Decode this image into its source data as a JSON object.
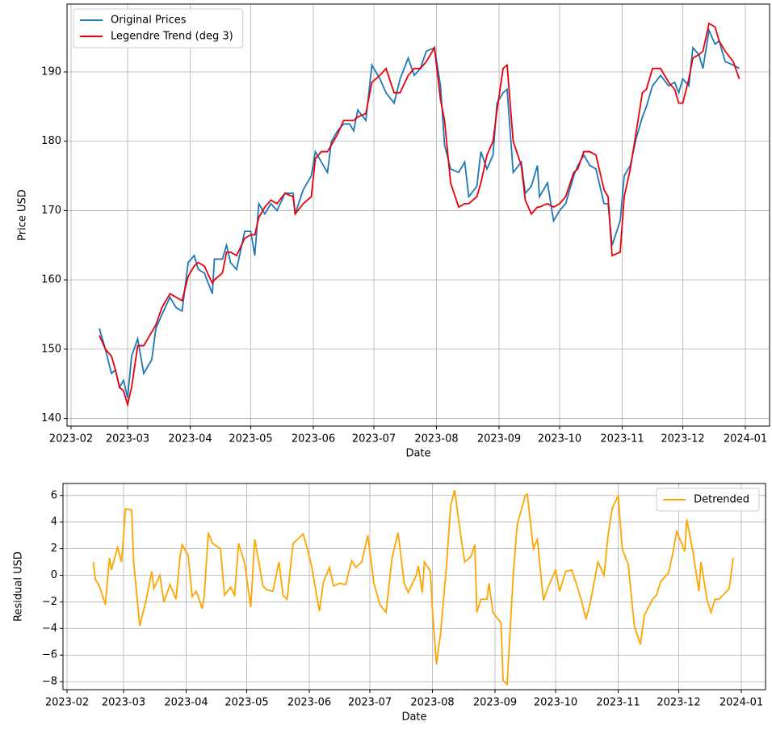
{
  "chart_data": [
    {
      "type": "line",
      "xlabel": "Date",
      "ylabel": "Price USD",
      "grid": true,
      "legend": "upper left",
      "xlim": [
        19387,
        19735
      ],
      "ylim": [
        138.9,
        199.8
      ],
      "xticks": [
        {
          "value": 19389,
          "label": "2023-02"
        },
        {
          "value": 19417,
          "label": "2023-03"
        },
        {
          "value": 19448,
          "label": "2023-04"
        },
        {
          "value": 19478,
          "label": "2023-05"
        },
        {
          "value": 19509,
          "label": "2023-06"
        },
        {
          "value": 19539,
          "label": "2023-07"
        },
        {
          "value": 19570,
          "label": "2023-08"
        },
        {
          "value": 19601,
          "label": "2023-09"
        },
        {
          "value": 19631,
          "label": "2023-10"
        },
        {
          "value": 19662,
          "label": "2023-11"
        },
        {
          "value": 19692,
          "label": "2023-12"
        },
        {
          "value": 19723,
          "label": "2024-01"
        }
      ],
      "yticks": [
        140,
        150,
        160,
        170,
        180,
        190
      ],
      "x": [
        19403,
        19406,
        19409,
        19411,
        19413,
        19415,
        19417,
        19419,
        19422,
        19425,
        19429,
        19431,
        19434,
        19438,
        19441,
        19444,
        19447,
        19450,
        19452,
        19455,
        19459,
        19460,
        19464,
        19466,
        19468,
        19471,
        19475,
        19478,
        19480,
        19482,
        19485,
        19488,
        19491,
        19495,
        19499,
        19500,
        19504,
        19508,
        19510,
        19513,
        19516,
        19518,
        19521,
        19524,
        19527,
        19529,
        19531,
        19535,
        19538,
        19542,
        19545,
        19549,
        19552,
        19556,
        19559,
        19562,
        19565,
        19569,
        19572,
        19574,
        19577,
        19581,
        19584,
        19586,
        19590,
        19592,
        19595,
        19598,
        19600,
        19603,
        19605,
        19608,
        19612,
        19614,
        19617,
        19620,
        19621,
        19625,
        19628,
        19631,
        19634,
        19638,
        19640,
        19643,
        19646,
        19649,
        19653,
        19655,
        19657,
        19661,
        19663,
        19666,
        19669,
        19672,
        19674,
        19677,
        19681,
        19685,
        19688,
        19690,
        19692,
        19695,
        19697,
        19700,
        19702,
        19705,
        19708,
        19710,
        19713,
        19717,
        19720
      ],
      "series": [
        {
          "name": "Original Prices",
          "color": "#1f77b4",
          "values": [
            153,
            150,
            146.5,
            147,
            144.5,
            145.5,
            143,
            149,
            151.5,
            146.5,
            148.5,
            153,
            155,
            157.5,
            156,
            155.5,
            162.5,
            163.5,
            161.5,
            161,
            158,
            163,
            163,
            165,
            162.5,
            161.5,
            167,
            167,
            163.5,
            171,
            169.5,
            171,
            170,
            172.5,
            172.5,
            169.5,
            173,
            175,
            178.5,
            177,
            175.5,
            180,
            181.5,
            182.5,
            182.5,
            181.5,
            184.5,
            183,
            191,
            189,
            187,
            185.5,
            189,
            192,
            189.5,
            190.5,
            193,
            193.5,
            188,
            179.5,
            176,
            175.5,
            177,
            172,
            173.5,
            178.5,
            176,
            178,
            185.5,
            187,
            187.5,
            175.5,
            177,
            172.5,
            173.5,
            176.5,
            172,
            174,
            168.5,
            170,
            171,
            175,
            176.5,
            178,
            176.5,
            176,
            171,
            171,
            165,
            168.5,
            175,
            176.5,
            180.5,
            183.5,
            185,
            188,
            189.5,
            188,
            188.5,
            187,
            189,
            188,
            193.5,
            192.5,
            190.5,
            196,
            194,
            194.5,
            191.5,
            191,
            190.5
          ]
        },
        {
          "name": "Legendre Trend (deg 3)",
          "color": "#e8000b",
          "values": [
            152,
            150,
            149,
            147,
            144.5,
            144,
            142,
            144.5,
            150.5,
            150.5,
            152.5,
            153.5,
            156,
            158,
            157.5,
            157,
            160.5,
            162,
            162.5,
            162,
            159.5,
            160,
            161,
            164,
            164,
            163.5,
            166,
            166.5,
            166.5,
            169,
            170.5,
            171.5,
            171,
            172.5,
            172,
            169.5,
            171,
            172,
            177.5,
            178.5,
            178.5,
            179.5,
            181,
            183,
            183,
            183,
            183.5,
            184,
            188.5,
            189.5,
            190.5,
            187,
            187,
            189.5,
            190.5,
            190.5,
            191.5,
            193.5,
            186,
            183,
            174,
            170.5,
            171,
            171,
            172,
            174,
            178,
            180,
            184.5,
            190.5,
            191,
            180,
            176.5,
            171.5,
            169.5,
            170.5,
            170.5,
            171,
            170.5,
            171,
            172,
            175.5,
            176,
            178.5,
            178.5,
            178,
            173,
            172,
            163.5,
            164,
            172,
            176,
            181.5,
            187,
            187.5,
            190.5,
            190.5,
            188.5,
            187.5,
            185.5,
            185.5,
            189,
            192,
            192.5,
            193,
            197,
            196.5,
            194.5,
            193,
            191.5,
            189
          ]
        }
      ]
    },
    {
      "type": "line",
      "xlabel": "Date",
      "ylabel": "Residual USD",
      "grid": true,
      "legend": "upper right",
      "xlim": [
        19387,
        19735
      ],
      "ylim": [
        -8.6,
        6.9
      ],
      "xticks": [
        {
          "value": 19389,
          "label": "2023-02"
        },
        {
          "value": 19417,
          "label": "2023-03"
        },
        {
          "value": 19448,
          "label": "2023-04"
        },
        {
          "value": 19478,
          "label": "2023-05"
        },
        {
          "value": 19509,
          "label": "2023-06"
        },
        {
          "value": 19539,
          "label": "2023-07"
        },
        {
          "value": 19570,
          "label": "2023-08"
        },
        {
          "value": 19601,
          "label": "2023-09"
        },
        {
          "value": 19631,
          "label": "2023-10"
        },
        {
          "value": 19662,
          "label": "2023-11"
        },
        {
          "value": 19692,
          "label": "2023-12"
        },
        {
          "value": 19723,
          "label": "2024-01"
        }
      ],
      "yticks": [
        {
          "value": -8,
          "label": "−8"
        },
        {
          "value": -6,
          "label": "−6"
        },
        {
          "value": -4,
          "label": "−4"
        },
        {
          "value": -2,
          "label": "−2"
        },
        0,
        2,
        4,
        6
      ],
      "x": [
        19402,
        19403,
        19405,
        19408,
        19410,
        19411,
        19414,
        19416,
        19418,
        19421,
        19422,
        19425,
        19428,
        19431,
        19432,
        19435,
        19437,
        19440,
        19443,
        19445,
        19446,
        19449,
        19451,
        19453,
        19456,
        19457,
        19459,
        19461,
        19465,
        19467,
        19470,
        19472,
        19474,
        19477,
        19480,
        19482,
        19484,
        19486,
        19488,
        19491,
        19494,
        19496,
        19498,
        19501,
        19506,
        19508,
        19510,
        19514,
        19516,
        19519,
        19521,
        19524,
        19527,
        19530,
        19532,
        19535,
        19538,
        19541,
        19544,
        19547,
        19550,
        19553,
        19556,
        19558,
        19562,
        19563,
        19565,
        19566,
        19569,
        19570,
        19572,
        19574,
        19577,
        19579,
        19581,
        19584,
        19586,
        19589,
        19591,
        19592,
        19594,
        19597,
        19598,
        19600,
        19604,
        19605,
        19607,
        19610,
        19612,
        19616,
        19617,
        19620,
        19622,
        19625,
        19627,
        19631,
        19633,
        19636,
        19639,
        19641,
        19644,
        19646,
        19648,
        19652,
        19655,
        19657,
        19659,
        19662,
        19664,
        19667,
        19670,
        19673,
        19675,
        19679,
        19681,
        19683,
        19687,
        19689,
        19691,
        19695,
        19696,
        19699,
        19702,
        19703,
        19706,
        19708,
        19710,
        19712,
        19717,
        19719
      ],
      "series": [
        {
          "name": "Detrended",
          "color": "#ffa500",
          "values": [
            1,
            -0.3,
            -0.8,
            -2.2,
            1.3,
            0.4,
            2.1,
            1,
            5,
            4.9,
            1,
            -3.8,
            -2,
            0.3,
            -1,
            0,
            -2,
            -0.7,
            -1.8,
            1.4,
            2.3,
            1.5,
            -1.6,
            -1.2,
            -2.5,
            -1.5,
            3.2,
            2.4,
            2,
            -1.5,
            -0.9,
            -1.5,
            2.4,
            0.9,
            -2.4,
            2.7,
            1,
            -0.8,
            -1.1,
            -1.2,
            1,
            -1.5,
            -1.8,
            2.4,
            3.1,
            2,
            0.8,
            -2.7,
            -0.5,
            0.6,
            -0.8,
            -0.6,
            -0.7,
            1.1,
            0.6,
            1,
            3,
            -0.6,
            -2.2,
            -2.8,
            1.3,
            3.2,
            -0.6,
            -1.3,
            0,
            0.7,
            -1.3,
            1,
            0.3,
            -2.6,
            -6.7,
            -4.4,
            0.8,
            5.2,
            6.4,
            3,
            1,
            1.4,
            2.3,
            -2.8,
            -1.8,
            -1.8,
            -0.6,
            -2.8,
            -3.6,
            -7.9,
            -8.2,
            0,
            3.8,
            6,
            6.1,
            2,
            2.7,
            -1.9,
            -1,
            0.4,
            -1.2,
            0.3,
            0.4,
            -0.5,
            -2,
            -3.3,
            -2.2,
            1,
            0,
            3,
            5,
            6,
            2,
            0.8,
            -3.8,
            -5.2,
            -3,
            -1.8,
            -1.5,
            -0.5,
            0.2,
            1.6,
            3.3,
            1.8,
            4.2,
            1.8,
            -1.2,
            1,
            -1.8,
            -2.8,
            -1.8,
            -1.8,
            -1,
            1.3
          ]
        }
      ]
    }
  ]
}
